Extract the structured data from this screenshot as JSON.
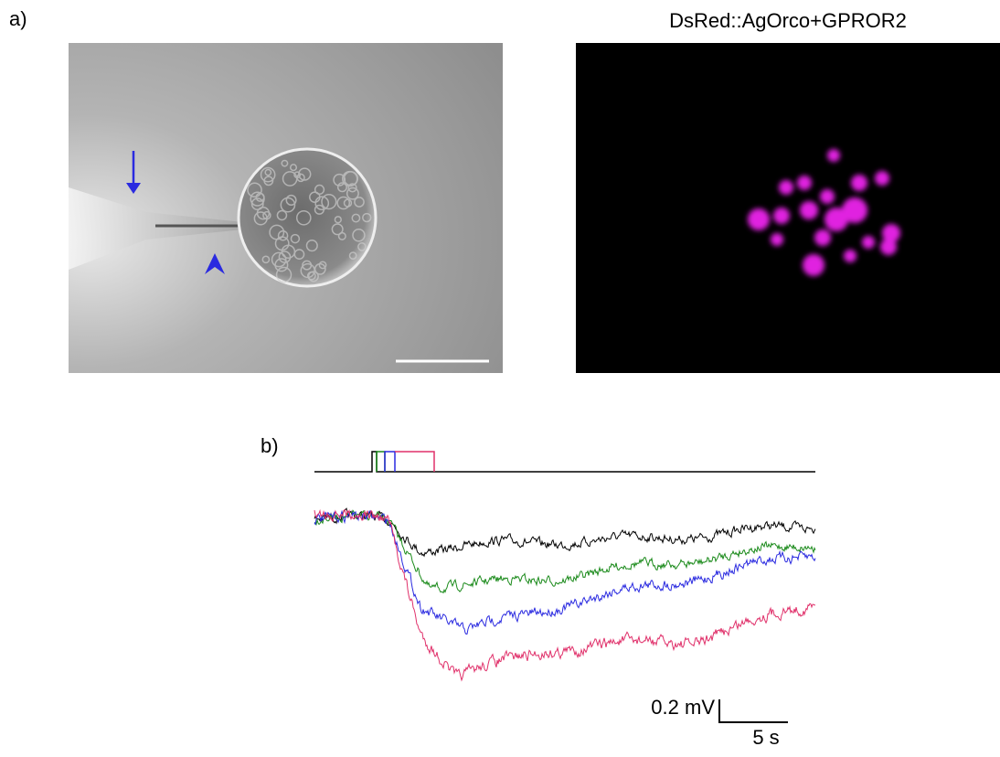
{
  "panel_a": {
    "label": "a)",
    "fluorescence_title": "DsRed::AgOrco+GPROR2"
  },
  "panel_b": {
    "label": "b)",
    "voltage_scale": "0.2 mV",
    "time_scale": "5 s"
  }
}
